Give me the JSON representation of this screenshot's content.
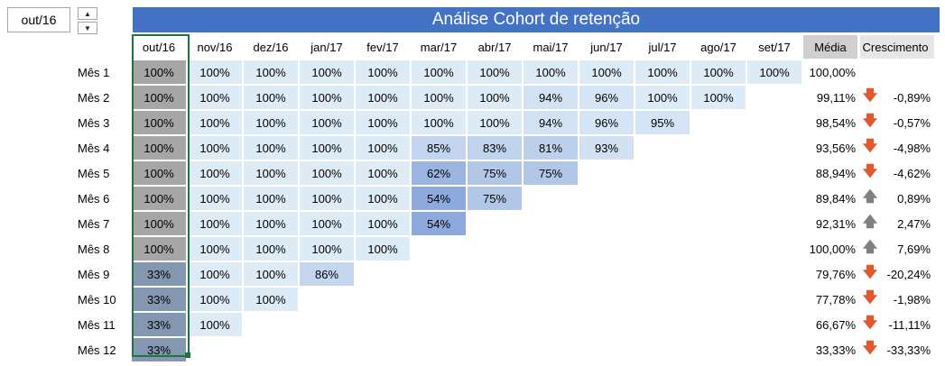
{
  "selector": {
    "value": "out/16"
  },
  "spinner": {
    "up": "▲",
    "down": "▼"
  },
  "title": "Análise Cohort de retenção",
  "headers": [
    "out/16",
    "nov/16",
    "dez/16",
    "jan/17",
    "fev/17",
    "mar/17",
    "abr/17",
    "mai/17",
    "jun/17",
    "jul/17",
    "ago/17",
    "set/17"
  ],
  "avg_header": "Média",
  "growth_header": "Crescimento",
  "rows": [
    {
      "label": "Mês 1",
      "values": [
        "100%",
        "100%",
        "100%",
        "100%",
        "100%",
        "100%",
        "100%",
        "100%",
        "100%",
        "100%",
        "100%",
        "100%"
      ],
      "avg": "100,00%",
      "dir": "",
      "growth": ""
    },
    {
      "label": "Mês 2",
      "values": [
        "100%",
        "100%",
        "100%",
        "100%",
        "100%",
        "100%",
        "100%",
        "94%",
        "96%",
        "100%",
        "100%",
        ""
      ],
      "avg": "99,11%",
      "dir": "down",
      "growth": "-0,89%"
    },
    {
      "label": "Mês 3",
      "values": [
        "100%",
        "100%",
        "100%",
        "100%",
        "100%",
        "100%",
        "100%",
        "94%",
        "96%",
        "95%",
        "",
        ""
      ],
      "avg": "98,54%",
      "dir": "down",
      "growth": "-0,57%"
    },
    {
      "label": "Mês 4",
      "values": [
        "100%",
        "100%",
        "100%",
        "100%",
        "100%",
        "85%",
        "83%",
        "81%",
        "93%",
        "",
        "",
        ""
      ],
      "avg": "93,56%",
      "dir": "down",
      "growth": "-4,98%"
    },
    {
      "label": "Mês 5",
      "values": [
        "100%",
        "100%",
        "100%",
        "100%",
        "100%",
        "62%",
        "75%",
        "75%",
        "",
        "",
        "",
        ""
      ],
      "avg": "88,94%",
      "dir": "down",
      "growth": "-4,62%"
    },
    {
      "label": "Mês 6",
      "values": [
        "100%",
        "100%",
        "100%",
        "100%",
        "100%",
        "54%",
        "75%",
        "",
        "",
        "",
        "",
        ""
      ],
      "avg": "89,84%",
      "dir": "up",
      "growth": "0,89%"
    },
    {
      "label": "Mês 7",
      "values": [
        "100%",
        "100%",
        "100%",
        "100%",
        "100%",
        "54%",
        "",
        "",
        "",
        "",
        "",
        ""
      ],
      "avg": "92,31%",
      "dir": "up",
      "growth": "2,47%"
    },
    {
      "label": "Mês 8",
      "values": [
        "100%",
        "100%",
        "100%",
        "100%",
        "100%",
        "",
        "",
        "",
        "",
        "",
        "",
        ""
      ],
      "avg": "100,00%",
      "dir": "up",
      "growth": "7,69%"
    },
    {
      "label": "Mês 9",
      "values": [
        "33%",
        "100%",
        "100%",
        "86%",
        "",
        "",
        "",
        "",
        "",
        "",
        "",
        ""
      ],
      "avg": "79,76%",
      "dir": "down",
      "growth": "-20,24%"
    },
    {
      "label": "Mês 10",
      "values": [
        "33%",
        "100%",
        "100%",
        "",
        "",
        "",
        "",
        "",
        "",
        "",
        "",
        ""
      ],
      "avg": "77,78%",
      "dir": "down",
      "growth": "-1,98%"
    },
    {
      "label": "Mês 11",
      "values": [
        "33%",
        "100%",
        "",
        "",
        "",
        "",
        "",
        "",
        "",
        "",
        "",
        ""
      ],
      "avg": "66,67%",
      "dir": "down",
      "growth": "-11,11%"
    },
    {
      "label": "Mês 12",
      "values": [
        "33%",
        "",
        "",
        "",
        "",
        "",
        "",
        "",
        "",
        "",
        "",
        ""
      ],
      "avg": "33,33%",
      "dir": "down",
      "growth": "-33,33%"
    }
  ],
  "colors": {
    "title_bg": "#4472c4",
    "arrow_down": "#e2582f",
    "arrow_up": "#808080",
    "first_col_100": "#a6a6a6",
    "first_col_33": "#8497b0",
    "scale_100": "#ddebf7",
    "scale_low": "#8ea9db"
  },
  "icons": {
    "down": "arrow-down-icon",
    "up": "arrow-up-icon"
  }
}
